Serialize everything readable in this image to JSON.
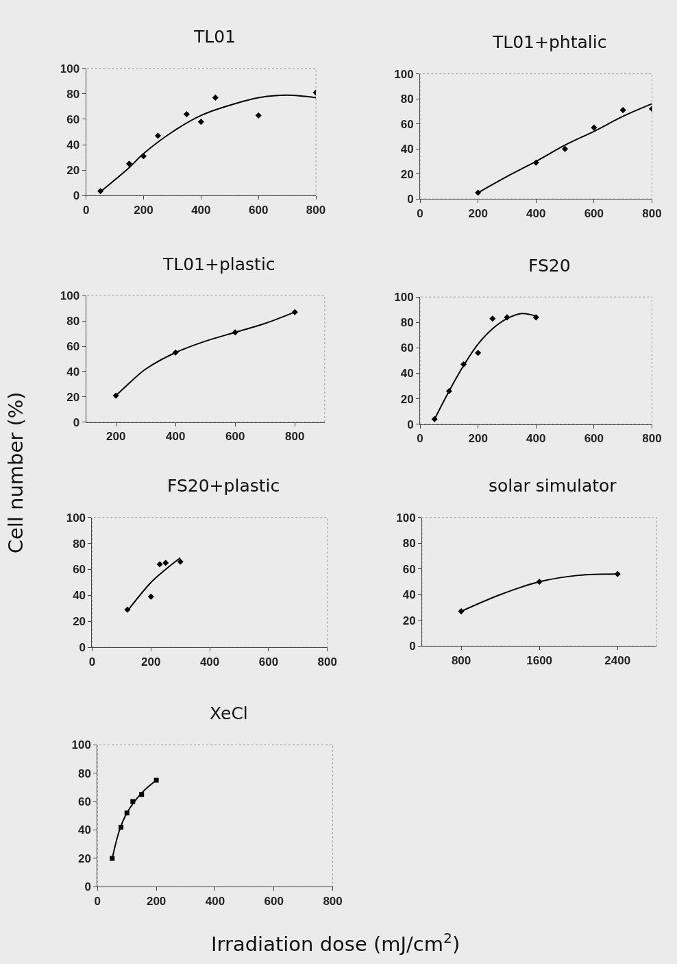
{
  "chart_data": [
    {
      "type": "scatter",
      "title": "TL01",
      "xlim": [
        0,
        800
      ],
      "xticks": [
        0,
        200,
        400,
        600,
        800
      ],
      "ylim": [
        0,
        100
      ],
      "yticks": [
        0,
        20,
        40,
        60,
        80,
        100
      ],
      "marker": "diamond",
      "series": [
        {
          "color": "#000000",
          "x": [
            50,
            150,
            200,
            250,
            350,
            400,
            450,
            600,
            800
          ],
          "values": [
            3.5,
            25,
            31,
            47,
            64,
            58,
            77,
            63,
            81
          ]
        },
        {
          "type": "line",
          "marker": "none",
          "color": "#000000",
          "x": [
            50,
            150,
            200,
            300,
            400,
            500,
            600,
            700,
            800
          ],
          "values": [
            3,
            22,
            33,
            50,
            63,
            71,
            77,
            79,
            77
          ]
        }
      ]
    },
    {
      "type": "scatter",
      "title": "TL01+phtalic",
      "xlim": [
        0,
        800
      ],
      "xticks": [
        0,
        200,
        400,
        600,
        800
      ],
      "ylim": [
        0,
        100
      ],
      "yticks": [
        0,
        20,
        40,
        60,
        80,
        100
      ],
      "marker": "diamond",
      "series": [
        {
          "color": "#000000",
          "x": [
            200,
            400,
            500,
            600,
            700,
            800
          ],
          "values": [
            5,
            29,
            40,
            57,
            71,
            72
          ]
        },
        {
          "type": "line",
          "marker": "none",
          "color": "#000000",
          "x": [
            200,
            300,
            400,
            500,
            600,
            700,
            800
          ],
          "values": [
            5,
            18,
            30,
            43,
            54,
            66,
            76
          ]
        }
      ]
    },
    {
      "type": "scatter",
      "title": "TL01+plastic",
      "xlim": [
        100,
        900
      ],
      "xticks": [
        200,
        400,
        600,
        800
      ],
      "ylim": [
        0,
        100
      ],
      "yticks": [
        0,
        20,
        40,
        60,
        80,
        100
      ],
      "marker": "diamond",
      "series": [
        {
          "color": "#000000",
          "x": [
            200,
            400,
            600,
            800
          ],
          "values": [
            21,
            55,
            71,
            87
          ]
        },
        {
          "type": "line",
          "marker": "none",
          "color": "#000000",
          "x": [
            200,
            250,
            300,
            400,
            500,
            600,
            700,
            800
          ],
          "values": [
            21,
            32,
            42,
            55,
            64,
            71,
            78,
            87
          ]
        }
      ]
    },
    {
      "type": "scatter",
      "title": "FS20",
      "xlim": [
        0,
        800
      ],
      "xticks": [
        0,
        200,
        400,
        600,
        800
      ],
      "ylim": [
        0,
        100
      ],
      "yticks": [
        0,
        20,
        40,
        60,
        80,
        100
      ],
      "marker": "diamond",
      "series": [
        {
          "color": "#000000",
          "x": [
            50,
            100,
            150,
            200,
            250,
            300,
            400
          ],
          "values": [
            4,
            26,
            47,
            56,
            83,
            84,
            84
          ]
        },
        {
          "type": "line",
          "marker": "none",
          "color": "#000000",
          "x": [
            50,
            100,
            150,
            200,
            250,
            300,
            350,
            400
          ],
          "values": [
            4,
            26,
            46,
            63,
            75,
            83,
            87,
            85
          ]
        }
      ]
    },
    {
      "type": "scatter",
      "title": "FS20+plastic",
      "ylabel": "Cell number (%)",
      "xlim": [
        0,
        800
      ],
      "xticks": [
        0,
        200,
        400,
        600,
        800
      ],
      "ylim": [
        0,
        100
      ],
      "yticks": [
        0,
        20,
        40,
        60,
        80,
        100
      ],
      "marker": "diamond",
      "series": [
        {
          "color": "#000000",
          "x": [
            120,
            200,
            230,
            250,
            300
          ],
          "values": [
            29,
            39,
            64,
            65,
            66
          ]
        },
        {
          "type": "line",
          "marker": "none",
          "color": "#000000",
          "x": [
            120,
            200,
            250,
            300
          ],
          "values": [
            28,
            50,
            60,
            69
          ]
        }
      ]
    },
    {
      "type": "scatter",
      "title": "solar simulator",
      "xlim": [
        400,
        2800
      ],
      "xticks": [
        800,
        1600,
        2400
      ],
      "ylim": [
        0,
        100
      ],
      "yticks": [
        0,
        20,
        40,
        60,
        80,
        100
      ],
      "marker": "diamond",
      "series": [
        {
          "color": "#000000",
          "x": [
            800,
            1600,
            2400
          ],
          "values": [
            27,
            50,
            56
          ]
        },
        {
          "type": "line",
          "marker": "none",
          "color": "#000000",
          "x": [
            800,
            1200,
            1600,
            2000,
            2400
          ],
          "values": [
            27,
            40,
            50,
            55,
            56
          ]
        }
      ]
    },
    {
      "type": "scatter",
      "title": "XeCl",
      "xlabel": "Irradiation dose (mJ/cm$^{2}$)",
      "xlim": [
        0,
        800
      ],
      "xticks": [
        0,
        200,
        400,
        600,
        800
      ],
      "ylim": [
        0,
        100
      ],
      "yticks": [
        0,
        20,
        40,
        60,
        80,
        100
      ],
      "marker": "square",
      "series": [
        {
          "color": "#000000",
          "x": [
            50,
            80,
            100,
            120,
            150,
            200
          ],
          "values": [
            20,
            42,
            52,
            60,
            65,
            75
          ]
        },
        {
          "type": "line",
          "marker": "none",
          "color": "#000000",
          "x": [
            50,
            75,
            100,
            150,
            200
          ],
          "values": [
            20,
            40,
            52,
            66,
            75
          ]
        }
      ]
    }
  ]
}
